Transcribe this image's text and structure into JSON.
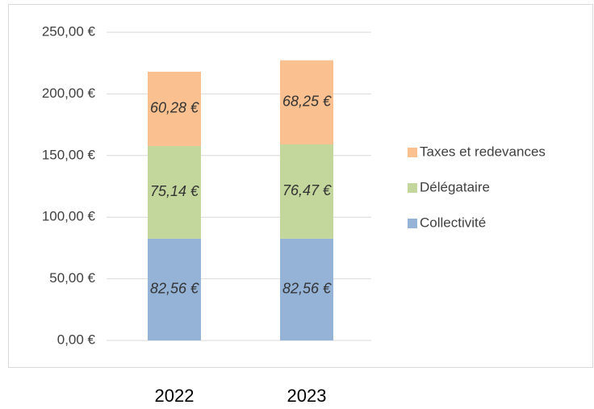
{
  "chart_data": {
    "type": "stacked_bar",
    "categories": [
      "2022",
      "2023"
    ],
    "series": [
      {
        "name": "Collectivité",
        "color": "#95b3d7",
        "values": [
          82.56,
          82.56
        ],
        "value_labels": [
          "82,56 €",
          "82,56 €"
        ]
      },
      {
        "name": "Délégataire",
        "color": "#c3d69b",
        "values": [
          75.14,
          76.47
        ],
        "value_labels": [
          "75,14 €",
          "76,47 €"
        ]
      },
      {
        "name": "Taxes et redevances",
        "color": "#fac090",
        "values": [
          60.28,
          68.25
        ],
        "value_labels": [
          "60,28 €",
          "68,25 €"
        ]
      }
    ],
    "ylim": [
      0,
      250
    ],
    "yticks": [
      {
        "value": 0,
        "label": "0,00 €"
      },
      {
        "value": 50,
        "label": "50,00 €"
      },
      {
        "value": 100,
        "label": "100,00 €"
      },
      {
        "value": 150,
        "label": "150,00 €"
      },
      {
        "value": 200,
        "label": "200,00 €"
      },
      {
        "value": 250,
        "label": "250,00 €"
      }
    ],
    "grid": true,
    "legend": "right"
  }
}
